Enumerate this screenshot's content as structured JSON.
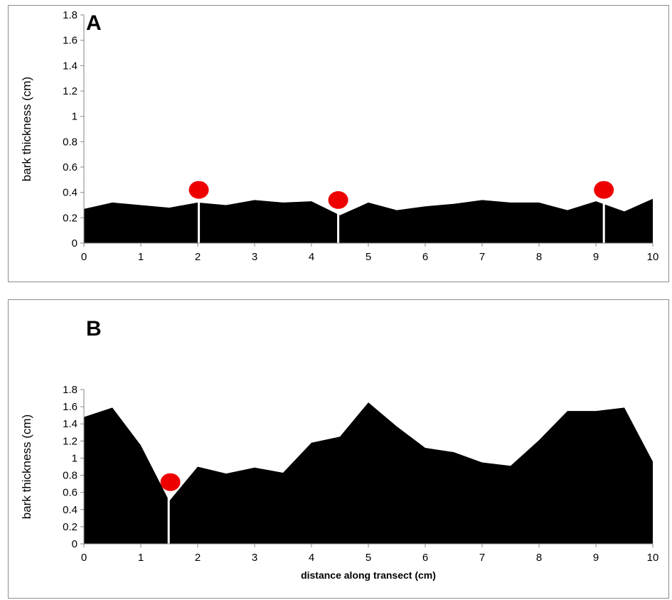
{
  "chart_data": [
    {
      "type": "area",
      "panel_label": "A",
      "ylabel": "bark thickness (cm)",
      "xlabel": "",
      "xlim": [
        0,
        10
      ],
      "ylim": [
        0,
        1.8
      ],
      "xticks": [
        0,
        1,
        2,
        3,
        4,
        5,
        6,
        7,
        8,
        9,
        10
      ],
      "yticks": [
        0,
        0.2,
        0.4,
        0.6,
        0.8,
        1,
        1.2,
        1.4,
        1.6,
        1.8
      ],
      "xtick_labels": [
        "0",
        "1",
        "2",
        "3",
        "4",
        "5",
        "6",
        "7",
        "8",
        "9",
        "10"
      ],
      "ytick_labels": [
        "0",
        "0.2",
        "0.4",
        "0.6",
        "0.8",
        "1",
        "1.2",
        "1.4",
        "1.6",
        "1.8"
      ],
      "series": [
        {
          "x": [
            0,
            0.5,
            1,
            1.5,
            2,
            2.5,
            3,
            3.5,
            4,
            4.5,
            5,
            5.5,
            6,
            6.5,
            7,
            7.5,
            8,
            8.5,
            9,
            9.5,
            10
          ],
          "values": [
            0.27,
            0.32,
            0.3,
            0.28,
            0.32,
            0.3,
            0.34,
            0.32,
            0.33,
            0.22,
            0.32,
            0.26,
            0.29,
            0.31,
            0.34,
            0.32,
            0.32,
            0.26,
            0.33,
            0.25,
            0.35
          ]
        }
      ],
      "gaps": [
        2.02,
        4.47,
        9.14
      ],
      "markers": [
        {
          "x": 2.02,
          "y": 0.42
        },
        {
          "x": 4.47,
          "y": 0.34
        },
        {
          "x": 9.14,
          "y": 0.42
        }
      ],
      "grid": false,
      "fill_color": "#000000",
      "marker_color": "#ee0000"
    },
    {
      "type": "area",
      "panel_label": "B",
      "ylabel": "bark thickness (cm)",
      "xlabel": "distance along transect (cm)",
      "xlim": [
        0,
        10
      ],
      "ylim": [
        0,
        1.8
      ],
      "xticks": [
        0,
        1,
        2,
        3,
        4,
        5,
        6,
        7,
        8,
        9,
        10
      ],
      "yticks": [
        0,
        0.2,
        0.4,
        0.6,
        0.8,
        1,
        1.2,
        1.4,
        1.6,
        1.8
      ],
      "xtick_labels": [
        "0",
        "1",
        "2",
        "3",
        "4",
        "5",
        "6",
        "7",
        "8",
        "9",
        "10"
      ],
      "ytick_labels": [
        "0",
        "0.2",
        "0.4",
        "0.6",
        "0.8",
        "1",
        "1.2",
        "1.4",
        "1.6",
        "1.8"
      ],
      "series": [
        {
          "x": [
            0,
            0.5,
            1,
            1.5,
            2,
            2.5,
            3,
            3.5,
            4,
            4.5,
            5,
            5.5,
            6,
            6.5,
            7,
            7.5,
            8,
            8.5,
            9,
            9.5,
            10
          ],
          "values": [
            1.48,
            1.59,
            1.15,
            0.5,
            0.9,
            0.82,
            0.89,
            0.83,
            1.18,
            1.25,
            1.65,
            1.37,
            1.12,
            1.07,
            0.95,
            0.91,
            1.21,
            1.55,
            1.55,
            1.59,
            0.96
          ]
        }
      ],
      "gaps": [
        1.49
      ],
      "markers": [
        {
          "x": 1.52,
          "y": 0.72
        }
      ],
      "grid": false,
      "fill_color": "#000000",
      "marker_color": "#ee0000"
    }
  ]
}
